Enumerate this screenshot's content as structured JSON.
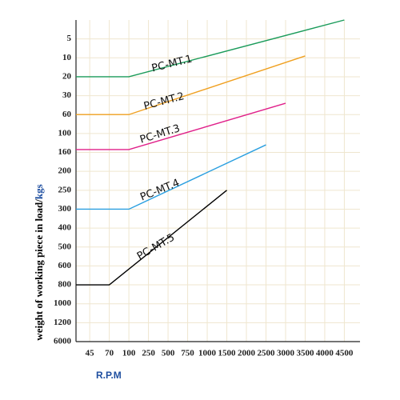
{
  "chart_data": {
    "type": "line",
    "ylabel": "weight of working piece in load/",
    "ylabel_unit": "kgs",
    "xlabel": "R.P.M",
    "xlim": [
      0.3,
      14.8
    ],
    "xticks": [
      {
        "value": 1,
        "label": "45"
      },
      {
        "value": 2,
        "label": "70"
      },
      {
        "value": 3,
        "label": "100"
      },
      {
        "value": 4,
        "label": "250"
      },
      {
        "value": 5,
        "label": "500"
      },
      {
        "value": 6,
        "label": "750"
      },
      {
        "value": 7,
        "label": "1000"
      },
      {
        "value": 8,
        "label": "1500"
      },
      {
        "value": 9,
        "label": "2000"
      },
      {
        "value": 10,
        "label": "2500"
      },
      {
        "value": 11,
        "label": "3000"
      },
      {
        "value": 12,
        "label": "3500"
      },
      {
        "value": 13,
        "label": "4000"
      },
      {
        "value": 14,
        "label": "4500"
      }
    ],
    "ylim": [
      16,
      -1
    ],
    "yticks": [
      {
        "value": 0,
        "label": "5"
      },
      {
        "value": 1,
        "label": "10"
      },
      {
        "value": 2,
        "label": "20"
      },
      {
        "value": 3,
        "label": "30"
      },
      {
        "value": 4,
        "label": "60"
      },
      {
        "value": 5,
        "label": "100"
      },
      {
        "value": 6,
        "label": "160"
      },
      {
        "value": 7,
        "label": "200"
      },
      {
        "value": 8,
        "label": "250"
      },
      {
        "value": 9,
        "label": "300"
      },
      {
        "value": 10,
        "label": "400"
      },
      {
        "value": 11,
        "label": "500"
      },
      {
        "value": 12,
        "label": "600"
      },
      {
        "value": 13,
        "label": "800"
      },
      {
        "value": 14,
        "label": "1000"
      },
      {
        "value": 15,
        "label": "1200"
      },
      {
        "value": 16,
        "label": "6000"
      }
    ],
    "grid": true,
    "series": [
      {
        "name": "PC-MT.1",
        "color": "#1a9b5a",
        "x": [
          0.3,
          3,
          14
        ],
        "values": [
          2,
          2,
          -1
        ]
      },
      {
        "name": "PC-MT.2",
        "color": "#f0a020",
        "x": [
          0.3,
          3,
          12
        ],
        "values": [
          4,
          4,
          0.9
        ]
      },
      {
        "name": "PC-MT.3",
        "color": "#e0208a",
        "x": [
          0.3,
          3,
          11
        ],
        "values": [
          5.85,
          5.85,
          3.4
        ]
      },
      {
        "name": "PC-MT.4",
        "color": "#2a9fe0",
        "x": [
          0.3,
          3,
          10
        ],
        "values": [
          9,
          9,
          5.6
        ]
      },
      {
        "name": "PC-MT.5",
        "color": "#000000",
        "x": [
          0.3,
          2,
          8
        ],
        "values": [
          13,
          13,
          8
        ]
      }
    ]
  }
}
